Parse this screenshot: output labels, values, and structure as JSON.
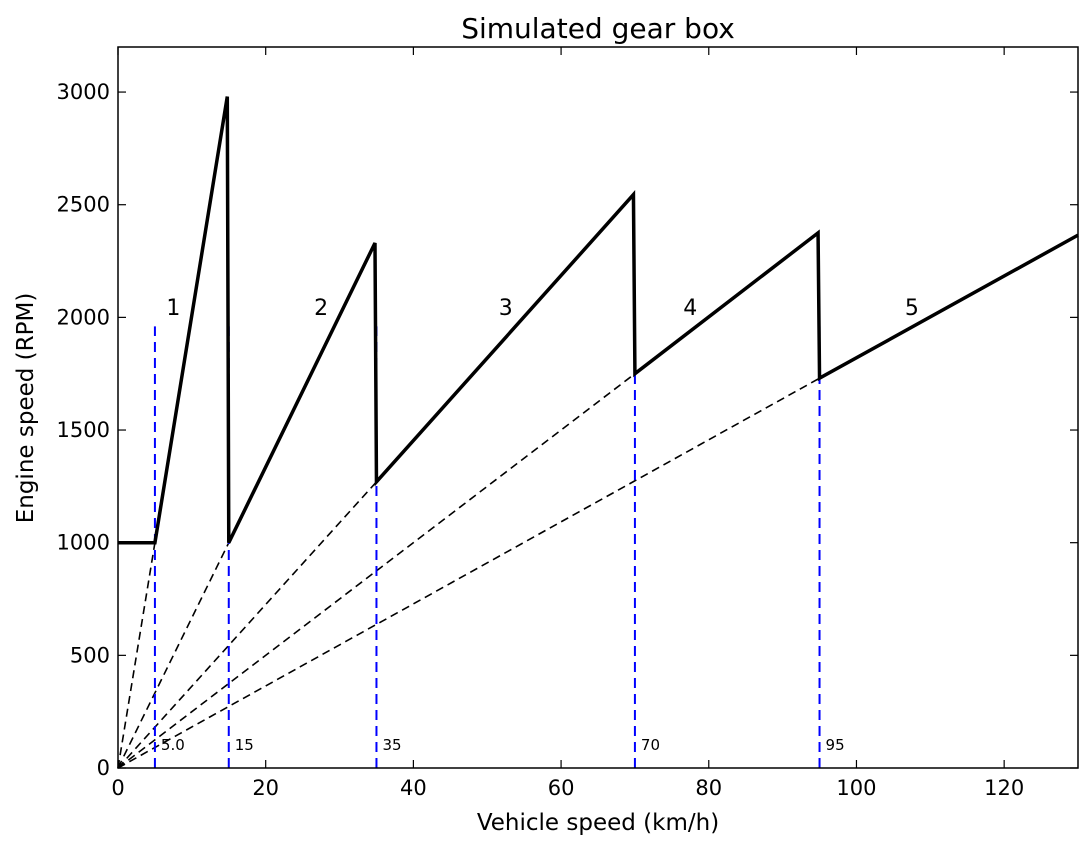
{
  "chart_data": {
    "type": "line",
    "title": "Simulated gear box",
    "xlabel": "Vehicle speed (km/h)",
    "ylabel": "Engine speed (RPM)",
    "xlim": [
      0,
      130
    ],
    "ylim": [
      0,
      3200
    ],
    "xticks": [
      0,
      20,
      40,
      60,
      80,
      100,
      120
    ],
    "yticks": [
      0,
      500,
      1000,
      1500,
      2000,
      2500,
      3000
    ],
    "grid": false,
    "engine_speed_line": {
      "color": "#000000",
      "style": "solid",
      "x": [
        0,
        5,
        14.8,
        15,
        34.8,
        35,
        69.8,
        70,
        94.8,
        95,
        130
      ],
      "y": [
        1000,
        1000,
        2980,
        1000,
        2330,
        1270,
        2545,
        1750,
        2375,
        1730,
        2365
      ]
    },
    "gear_ratio_lines": {
      "color": "#000000",
      "style": "dashed",
      "lines": [
        {
          "x": [
            0,
            5
          ],
          "y": [
            0,
            1000
          ]
        },
        {
          "x": [
            0,
            15
          ],
          "y": [
            0,
            1000
          ]
        },
        {
          "x": [
            0,
            35
          ],
          "y": [
            0,
            1270
          ]
        },
        {
          "x": [
            0,
            70
          ],
          "y": [
            0,
            1750
          ]
        },
        {
          "x": [
            0,
            95
          ],
          "y": [
            0,
            1730
          ]
        }
      ]
    },
    "shift_points": {
      "color": "#0000ff",
      "style": "dashed",
      "y_top": 1960,
      "points": [
        {
          "x": 5,
          "label": "5.0"
        },
        {
          "x": 15,
          "label": "15"
        },
        {
          "x": 35,
          "label": "35"
        },
        {
          "x": 70,
          "label": "70"
        },
        {
          "x": 95,
          "label": "95"
        }
      ]
    },
    "gear_labels": [
      {
        "x": 7.5,
        "y": 2010,
        "label": "1"
      },
      {
        "x": 27.5,
        "y": 2010,
        "label": "2"
      },
      {
        "x": 52.5,
        "y": 2010,
        "label": "3"
      },
      {
        "x": 77.5,
        "y": 2010,
        "label": "4"
      },
      {
        "x": 107.5,
        "y": 2010,
        "label": "5"
      }
    ]
  }
}
